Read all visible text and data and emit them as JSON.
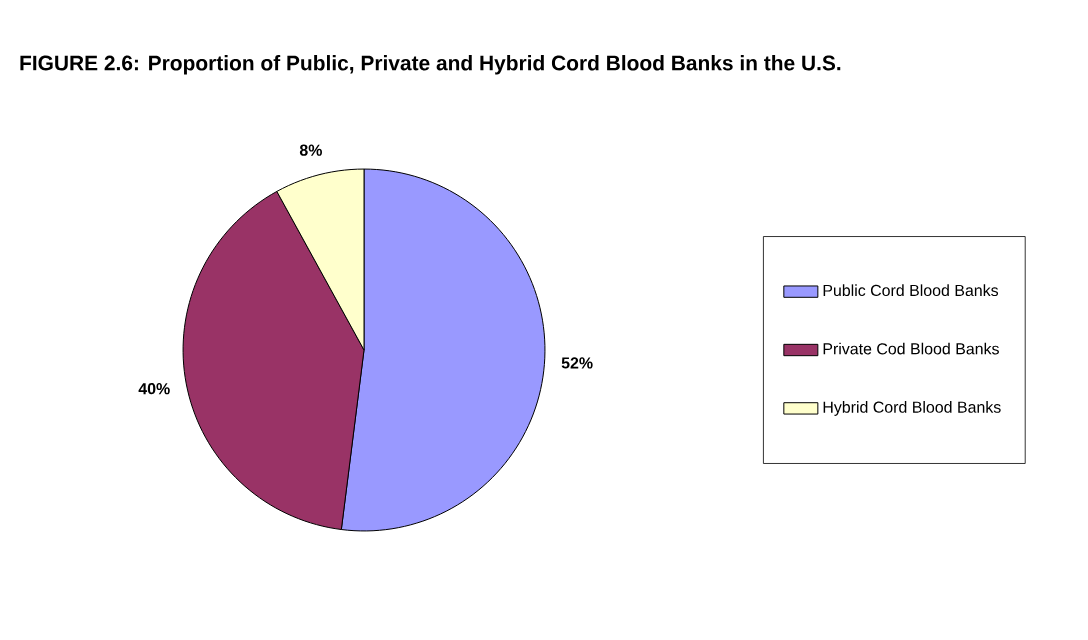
{
  "chart_data": {
    "type": "pie",
    "title": "FIGURE 2.6: Proportion of Public, Private and Hybrid Cord Blood Banks in the U.S.",
    "categories": [
      "Public Cord Blood Banks",
      "Private Cod Blood Banks",
      "Hybrid Cord Blood Banks"
    ],
    "values": [
      52,
      40,
      8
    ],
    "colors": [
      "#9999ff",
      "#993366",
      "#ffffcc"
    ],
    "value_labels": [
      "52%",
      "40%",
      "8%"
    ],
    "legend": "right"
  }
}
